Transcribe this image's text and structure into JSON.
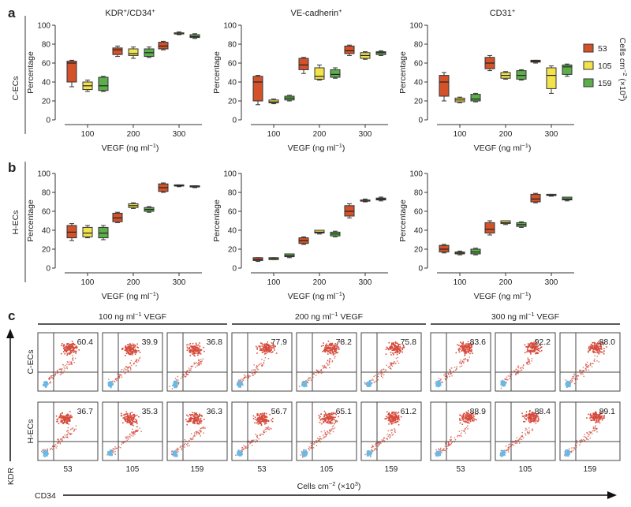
{
  "panel_labels": [
    "a",
    "b",
    "c"
  ],
  "row_labels": [
    "C-ECs",
    "H-ECs"
  ],
  "colors": {
    "53": "#d4522a",
    "105": "#f2e34c",
    "159": "#5cae4a",
    "flow_red": "#d64b3c",
    "flow_blue": "#6cb8e4"
  },
  "legend": {
    "items": [
      "53",
      "105",
      "159"
    ],
    "title_prefix": "Cells cm",
    "exp": "−2",
    "title_suffix": " (×10",
    "title_exp2": "3",
    "title_end": ")"
  },
  "common": {
    "xlabel_prefix": "VEGF (ng ml",
    "xlabel_exp": "−1",
    "xlabel_suffix": ")",
    "ylabel": "Percentage",
    "yticks": [
      "0",
      "20",
      "40",
      "60",
      "80",
      "100"
    ],
    "xticks": [
      "100",
      "200",
      "300"
    ]
  },
  "chart_data": [
    {
      "type": "box",
      "panel": "a",
      "row": "C-ECs",
      "title_parts": [
        "KDR",
        "+",
        "/CD34",
        "+"
      ],
      "categories": [
        100,
        200,
        300
      ],
      "ylim": [
        0,
        100
      ],
      "series": [
        {
          "name": "53",
          "boxes": [
            {
              "min": 35,
              "q1": 40,
              "med": 60,
              "q3": 62,
              "max": 63
            },
            {
              "min": 67,
              "q1": 69,
              "med": 74,
              "q3": 76,
              "max": 78
            },
            {
              "min": 74,
              "q1": 75,
              "med": 78,
              "q3": 82,
              "max": 83
            }
          ]
        },
        {
          "name": "105",
          "boxes": [
            {
              "min": 30,
              "q1": 32,
              "med": 36,
              "q3": 40,
              "max": 42
            },
            {
              "min": 65,
              "q1": 68,
              "med": 70,
              "q3": 75,
              "max": 77
            },
            {
              "min": 90,
              "q1": 91,
              "med": 91,
              "q3": 92,
              "max": 93
            }
          ]
        },
        {
          "name": "159",
          "boxes": [
            {
              "min": 30,
              "q1": 31,
              "med": 36,
              "q3": 45,
              "max": 46
            },
            {
              "min": 66,
              "q1": 67,
              "med": 71,
              "q3": 75,
              "max": 77
            },
            {
              "min": 86,
              "q1": 87,
              "med": 88,
              "q3": 90,
              "max": 91
            }
          ]
        }
      ]
    },
    {
      "type": "box",
      "panel": "a",
      "row": "C-ECs",
      "title_parts": [
        "VE-cadherin",
        "+",
        "",
        ""
      ],
      "categories": [
        100,
        200,
        300
      ],
      "ylim": [
        0,
        100
      ],
      "series": [
        {
          "name": "53",
          "boxes": [
            {
              "min": 16,
              "q1": 20,
              "med": 40,
              "q3": 46,
              "max": 47
            },
            {
              "min": 49,
              "q1": 53,
              "med": 58,
              "q3": 65,
              "max": 66
            },
            {
              "min": 68,
              "q1": 70,
              "med": 73,
              "q3": 78,
              "max": 79
            }
          ]
        },
        {
          "name": "105",
          "boxes": [
            {
              "min": 17,
              "q1": 18,
              "med": 19,
              "q3": 21,
              "max": 22
            },
            {
              "min": 42,
              "q1": 43,
              "med": 46,
              "q3": 55,
              "max": 58
            },
            {
              "min": 64,
              "q1": 65,
              "med": 68,
              "q3": 71,
              "max": 72
            }
          ]
        },
        {
          "name": "159",
          "boxes": [
            {
              "min": 20,
              "q1": 21,
              "med": 23,
              "q3": 25,
              "max": 26
            },
            {
              "min": 44,
              "q1": 45,
              "med": 48,
              "q3": 53,
              "max": 55
            },
            {
              "min": 68,
              "q1": 69,
              "med": 71,
              "q3": 72,
              "max": 73
            }
          ]
        }
      ]
    },
    {
      "type": "box",
      "panel": "a",
      "row": "C-ECs",
      "title_parts": [
        "CD31",
        "+",
        "",
        ""
      ],
      "categories": [
        100,
        200,
        300
      ],
      "ylim": [
        0,
        100
      ],
      "series": [
        {
          "name": "53",
          "boxes": [
            {
              "min": 20,
              "q1": 25,
              "med": 40,
              "q3": 47,
              "max": 50
            },
            {
              "min": 52,
              "q1": 54,
              "med": 60,
              "q3": 66,
              "max": 68
            },
            {
              "min": 60,
              "q1": 61,
              "med": 62,
              "q3": 63,
              "max": 63
            }
          ]
        },
        {
          "name": "105",
          "boxes": [
            {
              "min": 18,
              "q1": 19,
              "med": 21,
              "q3": 23,
              "max": 24
            },
            {
              "min": 43,
              "q1": 44,
              "med": 47,
              "q3": 50,
              "max": 51
            },
            {
              "min": 28,
              "q1": 33,
              "med": 47,
              "q3": 55,
              "max": 57
            }
          ]
        },
        {
          "name": "159",
          "boxes": [
            {
              "min": 19,
              "q1": 20,
              "med": 22,
              "q3": 27,
              "max": 28
            },
            {
              "min": 42,
              "q1": 43,
              "med": 47,
              "q3": 52,
              "max": 53
            },
            {
              "min": 46,
              "q1": 48,
              "med": 56,
              "q3": 58,
              "max": 59
            }
          ]
        }
      ]
    },
    {
      "type": "box",
      "panel": "b",
      "row": "H-ECs",
      "title_parts": [
        "",
        "",
        "",
        ""
      ],
      "categories": [
        100,
        200,
        300
      ],
      "ylim": [
        0,
        100
      ],
      "series": [
        {
          "name": "53",
          "boxes": [
            {
              "min": 29,
              "q1": 32,
              "med": 38,
              "q3": 45,
              "max": 47
            },
            {
              "min": 48,
              "q1": 49,
              "med": 53,
              "q3": 58,
              "max": 59
            },
            {
              "min": 80,
              "q1": 81,
              "med": 85,
              "q3": 89,
              "max": 90
            }
          ]
        },
        {
          "name": "105",
          "boxes": [
            {
              "min": 32,
              "q1": 33,
              "med": 37,
              "q3": 43,
              "max": 45
            },
            {
              "min": 63,
              "q1": 64,
              "med": 66,
              "q3": 68,
              "max": 69
            },
            {
              "min": 86,
              "q1": 87,
              "med": 87,
              "q3": 88,
              "max": 88
            }
          ]
        },
        {
          "name": "159",
          "boxes": [
            {
              "min": 30,
              "q1": 32,
              "med": 37,
              "q3": 43,
              "max": 45
            },
            {
              "min": 59,
              "q1": 60,
              "med": 62,
              "q3": 64,
              "max": 65
            },
            {
              "min": 85,
              "q1": 86,
              "med": 86,
              "q3": 87,
              "max": 87
            }
          ]
        }
      ]
    },
    {
      "type": "box",
      "panel": "b",
      "row": "H-ECs",
      "title_parts": [
        "",
        "",
        "",
        ""
      ],
      "categories": [
        100,
        200,
        300
      ],
      "ylim": [
        0,
        100
      ],
      "series": [
        {
          "name": "53",
          "boxes": [
            {
              "min": 7,
              "q1": 8,
              "med": 9,
              "q3": 11,
              "max": 11
            },
            {
              "min": 25,
              "q1": 26,
              "med": 29,
              "q3": 32,
              "max": 33
            },
            {
              "min": 53,
              "q1": 55,
              "med": 60,
              "q3": 66,
              "max": 68
            }
          ]
        },
        {
          "name": "105",
          "boxes": [
            {
              "min": 9,
              "q1": 9,
              "med": 10,
              "q3": 11,
              "max": 11
            },
            {
              "min": 36,
              "q1": 37,
              "med": 38,
              "q3": 40,
              "max": 40
            },
            {
              "min": 70,
              "q1": 71,
              "med": 71,
              "q3": 72,
              "max": 73
            }
          ]
        },
        {
          "name": "159",
          "boxes": [
            {
              "min": 11,
              "q1": 12,
              "med": 13,
              "q3": 15,
              "max": 15
            },
            {
              "min": 33,
              "q1": 34,
              "med": 36,
              "q3": 38,
              "max": 39
            },
            {
              "min": 71,
              "q1": 72,
              "med": 73,
              "q3": 74,
              "max": 75
            }
          ]
        }
      ]
    },
    {
      "type": "box",
      "panel": "b",
      "row": "H-ECs",
      "title_parts": [
        "",
        "",
        "",
        ""
      ],
      "categories": [
        100,
        200,
        300
      ],
      "ylim": [
        0,
        100
      ],
      "series": [
        {
          "name": "53",
          "boxes": [
            {
              "min": 16,
              "q1": 17,
              "med": 20,
              "q3": 24,
              "max": 25
            },
            {
              "min": 35,
              "q1": 37,
              "med": 41,
              "q3": 48,
              "max": 50
            },
            {
              "min": 69,
              "q1": 70,
              "med": 73,
              "q3": 78,
              "max": 79
            }
          ]
        },
        {
          "name": "105",
          "boxes": [
            {
              "min": 14,
              "q1": 15,
              "med": 16,
              "q3": 17,
              "max": 18
            },
            {
              "min": 46,
              "q1": 47,
              "med": 48,
              "q3": 50,
              "max": 50
            },
            {
              "min": 76,
              "q1": 77,
              "med": 77,
              "q3": 78,
              "max": 78
            }
          ]
        },
        {
          "name": "159",
          "boxes": [
            {
              "min": 14,
              "q1": 15,
              "med": 17,
              "q3": 20,
              "max": 21
            },
            {
              "min": 43,
              "q1": 44,
              "med": 46,
              "q3": 48,
              "max": 49
            },
            {
              "min": 71,
              "q1": 72,
              "med": 73,
              "q3": 75,
              "max": 75
            }
          ]
        }
      ]
    }
  ],
  "flow": {
    "groups": [
      {
        "prefix": "100 ng ml",
        "exp": "−1",
        "suffix": " VEGF"
      },
      {
        "prefix": "200 ng ml",
        "exp": "−1",
        "suffix": " VEGF"
      },
      {
        "prefix": "300 ng ml",
        "exp": "−1",
        "suffix": " VEGF"
      }
    ],
    "rows": [
      "C-ECs",
      "H-ECs"
    ],
    "values": [
      [
        "60.4",
        "39.9",
        "36.8",
        "77.9",
        "78.2",
        "75.8",
        "83.6",
        "92.2",
        "88.0"
      ],
      [
        "36.7",
        "35.3",
        "36.3",
        "56.7",
        "65.1",
        "61.2",
        "88.9",
        "88.4",
        "89.1"
      ]
    ],
    "col_labels": [
      "53",
      "105",
      "159",
      "53",
      "105",
      "159",
      "53",
      "105",
      "159"
    ],
    "xaxis_prefix": "Cells cm",
    "xaxis_exp": "−2",
    "xaxis_suffix": " (×10",
    "xaxis_exp2": "3",
    "xaxis_end": ")",
    "y_axis_label": "KDR",
    "x_axis_label": "CD34"
  }
}
